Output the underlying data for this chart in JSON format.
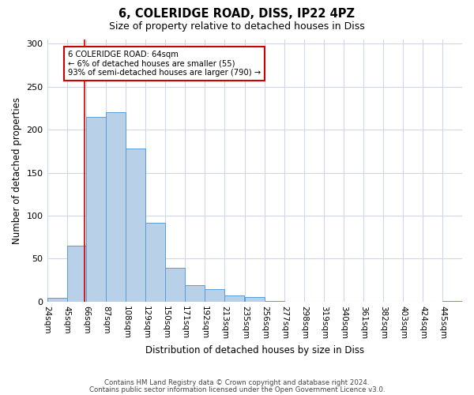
{
  "title": "6, COLERIDGE ROAD, DISS, IP22 4PZ",
  "subtitle": "Size of property relative to detached houses in Diss",
  "xlabel": "Distribution of detached houses by size in Diss",
  "ylabel": "Number of detached properties",
  "bin_labels": [
    "24sqm",
    "45sqm",
    "66sqm",
    "87sqm",
    "108sqm",
    "129sqm",
    "150sqm",
    "171sqm",
    "192sqm",
    "213sqm",
    "235sqm",
    "256sqm",
    "277sqm",
    "298sqm",
    "319sqm",
    "340sqm",
    "361sqm",
    "382sqm",
    "403sqm",
    "424sqm",
    "445sqm"
  ],
  "bin_edges": [
    24,
    45,
    66,
    87,
    108,
    129,
    150,
    171,
    192,
    213,
    235,
    256,
    277,
    298,
    319,
    340,
    361,
    382,
    403,
    424,
    445
  ],
  "bar_heights": [
    4,
    65,
    215,
    220,
    178,
    92,
    39,
    19,
    14,
    7,
    5,
    1,
    0,
    0,
    0,
    0,
    0,
    0,
    0,
    0,
    1
  ],
  "bar_color": "#b8d0e8",
  "bar_edge_color": "#5b9bd5",
  "property_line_x": 64,
  "annotation_line1": "6 COLERIDGE ROAD: 64sqm",
  "annotation_line2": "← 6% of detached houses are smaller (55)",
  "annotation_line3": "93% of semi-detached houses are larger (790) →",
  "annotation_box_color": "#ffffff",
  "annotation_box_edge_color": "#cc0000",
  "vline_color": "#cc0000",
  "ylim": [
    0,
    305
  ],
  "yticks": [
    0,
    50,
    100,
    150,
    200,
    250,
    300
  ],
  "footer1": "Contains HM Land Registry data © Crown copyright and database right 2024.",
  "footer2": "Contains public sector information licensed under the Open Government Licence v3.0.",
  "background_color": "#ffffff",
  "grid_color": "#d0d8e8"
}
